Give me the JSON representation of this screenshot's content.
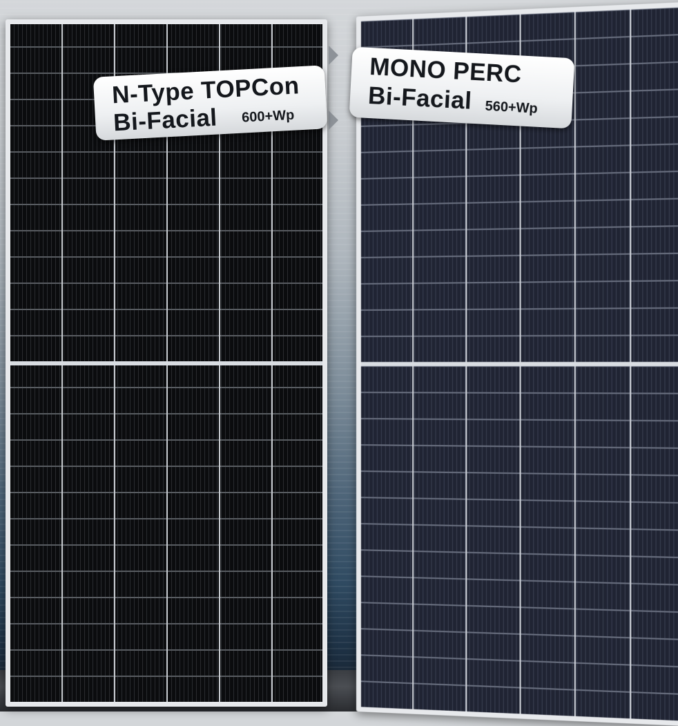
{
  "panels": [
    {
      "label_line1": "N-Type TOPCon",
      "label_line2": "Bi-Facial",
      "rating": "600+Wp"
    },
    {
      "label_line1": "MONO PERC",
      "label_line2": "Bi-Facial",
      "rating": "560+Wp"
    }
  ],
  "colors": {
    "left_panel_cells": "#0b0c0e",
    "right_panel_cells": "#202433",
    "frame": "#e7e9ec",
    "label_bg": "#ffffff",
    "label_text": "#14171c"
  }
}
